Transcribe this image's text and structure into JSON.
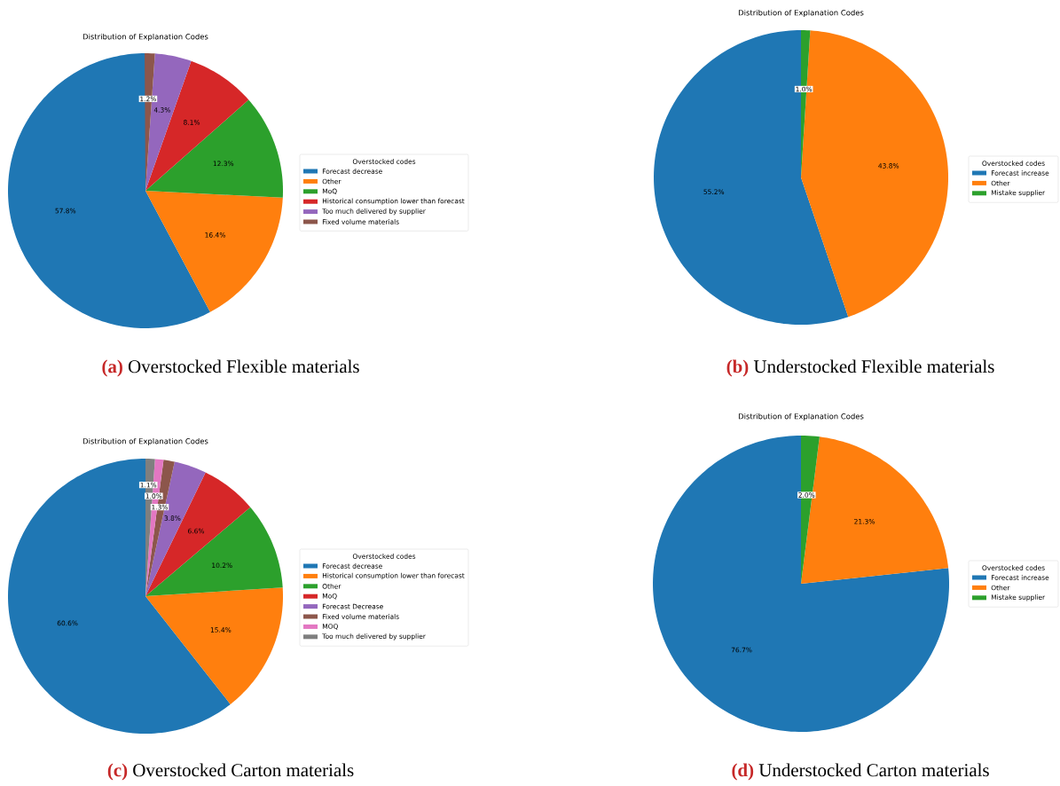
{
  "chart_data": [
    {
      "type": "pie",
      "title": "Distribution of Explanation Codes",
      "legend_title": "Overstocked codes",
      "categories": [
        "Forecast decrease",
        "Other",
        "MoQ",
        "Historical consumption lower than forecast",
        "Too much delivered by supplier",
        "Fixed volume materials"
      ],
      "values": [
        57.8,
        16.4,
        12.3,
        8.1,
        4.3,
        1.2
      ],
      "value_labels": [
        "57.8%",
        "16.4%",
        "12.3%",
        "8.1%",
        "4.3%",
        "1.2%"
      ],
      "colors": [
        "#1f77b4",
        "#ff7f0e",
        "#2ca02c",
        "#d62728",
        "#9467bd",
        "#8c564b"
      ],
      "data_labels": true,
      "legend": "right",
      "annotations": [
        "(a)",
        "Overstocked Flexible materials"
      ]
    },
    {
      "type": "pie",
      "title": "Distribution of Explanation Codes",
      "legend_title": "Overstocked codes",
      "categories": [
        "Forecast increase",
        "Other",
        "Mistake supplier"
      ],
      "values": [
        55.2,
        43.8,
        1.0
      ],
      "value_labels": [
        "55.2%",
        "43.8%",
        "1.0%"
      ],
      "colors": [
        "#1f77b4",
        "#ff7f0e",
        "#2ca02c"
      ],
      "data_labels": true,
      "legend": "right",
      "annotations": [
        "(b)",
        "Understocked Flexible materials"
      ]
    },
    {
      "type": "pie",
      "title": "Distribution of Explanation Codes",
      "legend_title": "Overstocked codes",
      "categories": [
        "Forecast decrease",
        "Historical consumption lower than forecast",
        "Other",
        "MoQ",
        "Forecast Decrease",
        "Fixed volume materials",
        "MOQ",
        "Too much delivered by supplier"
      ],
      "values": [
        60.6,
        15.4,
        10.2,
        6.6,
        3.8,
        1.3,
        1.0,
        1.1
      ],
      "value_labels": [
        "60.6%",
        "15.4%",
        "10.2%",
        "6.6%",
        "3.8%",
        "1.3%",
        "1.0%",
        "1.1%"
      ],
      "colors": [
        "#1f77b4",
        "#ff7f0e",
        "#2ca02c",
        "#d62728",
        "#9467bd",
        "#8c564b",
        "#e377c2",
        "#7f7f7f"
      ],
      "data_labels": true,
      "legend": "right",
      "annotations": [
        "(c)",
        "Overstocked Carton materials"
      ]
    },
    {
      "type": "pie",
      "title": "Distribution of Explanation Codes",
      "legend_title": "Overstocked codes",
      "categories": [
        "Forecast increase",
        "Other",
        "Mistake supplier"
      ],
      "values": [
        76.7,
        21.3,
        2.0
      ],
      "value_labels": [
        "76.7%",
        "21.3%",
        "2.0%"
      ],
      "colors": [
        "#1f77b4",
        "#ff7f0e",
        "#2ca02c"
      ],
      "data_labels": true,
      "legend": "right",
      "annotations": [
        "(d)",
        "Understocked Carton materials"
      ]
    }
  ]
}
